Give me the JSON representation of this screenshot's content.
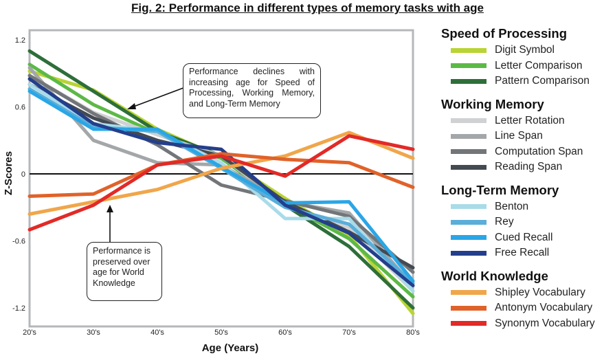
{
  "title": "Fig. 2: Performance in different types of memory tasks with age",
  "chart_data": {
    "type": "line",
    "xlabel": "Age (Years)",
    "ylabel": "Z-Scores",
    "categories": [
      "20's",
      "30's",
      "40's",
      "50's",
      "60's",
      "70's",
      "80's"
    ],
    "ylim": [
      -1.2,
      1.2
    ],
    "yticks": [
      "1.2",
      "0.6",
      "0",
      "-0.6",
      "-1.2"
    ],
    "grid": false,
    "legend_position": "right",
    "series": [
      {
        "group": "Speed of Processing",
        "name": "Digit Symbol",
        "color": "#b9d434",
        "values": [
          0.92,
          0.75,
          0.4,
          0.15,
          -0.22,
          -0.55,
          -1.25
        ]
      },
      {
        "group": "Speed of Processing",
        "name": "Letter Comparison",
        "color": "#5cb947",
        "values": [
          0.98,
          0.62,
          0.36,
          0.14,
          -0.27,
          -0.58,
          -1.1
        ]
      },
      {
        "group": "Speed of Processing",
        "name": "Pattern Comparison",
        "color": "#2e6e3a",
        "values": [
          1.1,
          0.74,
          0.38,
          0.16,
          -0.28,
          -0.65,
          -1.2
        ]
      },
      {
        "group": "Working Memory",
        "name": "Letter Rotation",
        "color": "#cfd1d3",
        "values": [
          0.88,
          0.55,
          0.35,
          0.16,
          -0.28,
          -0.48,
          -1.05
        ]
      },
      {
        "group": "Working Memory",
        "name": "Line Span",
        "color": "#a4a7a9",
        "values": [
          0.95,
          0.3,
          0.1,
          0.08,
          -0.25,
          -0.35,
          -1.0
        ]
      },
      {
        "group": "Working Memory",
        "name": "Computation Span",
        "color": "#737679",
        "values": [
          0.88,
          0.54,
          0.26,
          -0.1,
          -0.24,
          -0.38,
          -0.88
        ]
      },
      {
        "group": "Working Memory",
        "name": "Reading Span",
        "color": "#444a52",
        "values": [
          0.8,
          0.5,
          0.3,
          0.16,
          -0.25,
          -0.52,
          -0.84
        ]
      },
      {
        "group": "Long-Term Memory",
        "name": "Benton",
        "color": "#a9dbe9",
        "values": [
          0.8,
          0.45,
          0.38,
          0.1,
          -0.4,
          -0.4,
          -1.05
        ]
      },
      {
        "group": "Long-Term Memory",
        "name": "Rey",
        "color": "#5aaed9",
        "values": [
          0.76,
          0.42,
          0.38,
          0.05,
          -0.3,
          -0.45,
          -0.98
        ]
      },
      {
        "group": "Long-Term Memory",
        "name": "Cued Recall",
        "color": "#2aa6e6",
        "values": [
          0.74,
          0.4,
          0.4,
          0.06,
          -0.26,
          -0.25,
          -0.96
        ]
      },
      {
        "group": "Long-Term Memory",
        "name": "Free Recall",
        "color": "#233f8c",
        "values": [
          0.85,
          0.45,
          0.28,
          0.22,
          -0.28,
          -0.53,
          -1.0
        ]
      },
      {
        "group": "World Knowledge",
        "name": "Shipley Vocabulary",
        "color": "#f0a64a",
        "values": [
          -0.36,
          -0.25,
          -0.14,
          0.05,
          0.16,
          0.37,
          0.14
        ]
      },
      {
        "group": "World Knowledge",
        "name": "Antonym Vocabulary",
        "color": "#e0622a",
        "values": [
          -0.2,
          -0.18,
          0.08,
          0.18,
          0.13,
          0.1,
          -0.12
        ]
      },
      {
        "group": "World Knowledge",
        "name": "Synonym Vocabulary",
        "color": "#e22a27",
        "values": [
          -0.5,
          -0.28,
          0.08,
          0.16,
          -0.02,
          0.34,
          0.22
        ]
      }
    ],
    "annotations": [
      {
        "text": "Performance declines with increasing age for Speed of Processing, Working Memory, and Long-Term Memory"
      },
      {
        "text": "Performance is preserved over age for World Knowledge"
      }
    ]
  }
}
